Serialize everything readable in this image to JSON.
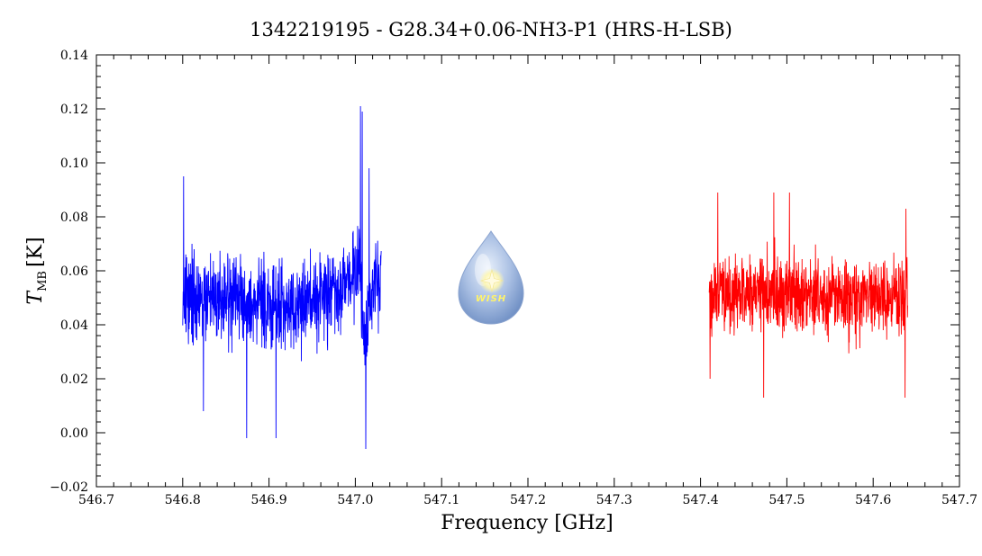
{
  "chart_data": {
    "type": "line",
    "title": "1342219195 - G28.34+0.06-NH3-P1 (HRS-H-LSB)",
    "xlabel": "Frequency [GHz]",
    "ylabel_main": "T",
    "ylabel_sub": "MB",
    "ylabel_unit": "[K]",
    "xlim": [
      546.7,
      547.7
    ],
    "ylim": [
      -0.02,
      0.14
    ],
    "x_ticks": [
      "546.7",
      "546.8",
      "546.9",
      "547.0",
      "547.1",
      "547.2",
      "547.3",
      "547.4",
      "547.5",
      "547.6",
      "547.7"
    ],
    "y_ticks": [
      "-0.02",
      "0.00",
      "0.02",
      "0.04",
      "0.06",
      "0.08",
      "0.10",
      "0.12",
      "0.14"
    ],
    "logo_text": "WISH",
    "series": [
      {
        "color": "#0000ff",
        "x_range": [
          546.8,
          547.03
        ],
        "anchors": [
          [
            546.8,
            0.049
          ],
          [
            546.84,
            0.05
          ],
          [
            546.88,
            0.049
          ],
          [
            546.92,
            0.047
          ],
          [
            546.95,
            0.049
          ],
          [
            546.98,
            0.054
          ],
          [
            547.0,
            0.06
          ],
          [
            547.005,
            0.064
          ],
          [
            547.01,
            0.035
          ],
          [
            547.015,
            0.042
          ],
          [
            547.02,
            0.055
          ],
          [
            547.03,
            0.055
          ]
        ],
        "noise": 0.011,
        "extremes": [
          [
            546.801,
            0.095
          ],
          [
            546.824,
            0.008
          ],
          [
            546.874,
            -0.002
          ],
          [
            546.908,
            -0.002
          ],
          [
            547.006,
            0.121
          ],
          [
            547.012,
            -0.006
          ],
          [
            547.016,
            0.098
          ],
          [
            547.008,
            0.119
          ]
        ]
      },
      {
        "color": "#ff0000",
        "x_range": [
          547.41,
          547.64
        ],
        "anchors": [
          [
            547.41,
            0.052
          ],
          [
            547.5,
            0.052
          ],
          [
            547.56,
            0.051
          ],
          [
            547.64,
            0.05
          ]
        ],
        "noise": 0.01,
        "extremes": [
          [
            547.42,
            0.089
          ],
          [
            547.473,
            0.013
          ],
          [
            547.485,
            0.089
          ],
          [
            547.503,
            0.089
          ],
          [
            547.638,
            0.083
          ],
          [
            547.637,
            0.013
          ],
          [
            547.411,
            0.02
          ]
        ]
      }
    ]
  }
}
